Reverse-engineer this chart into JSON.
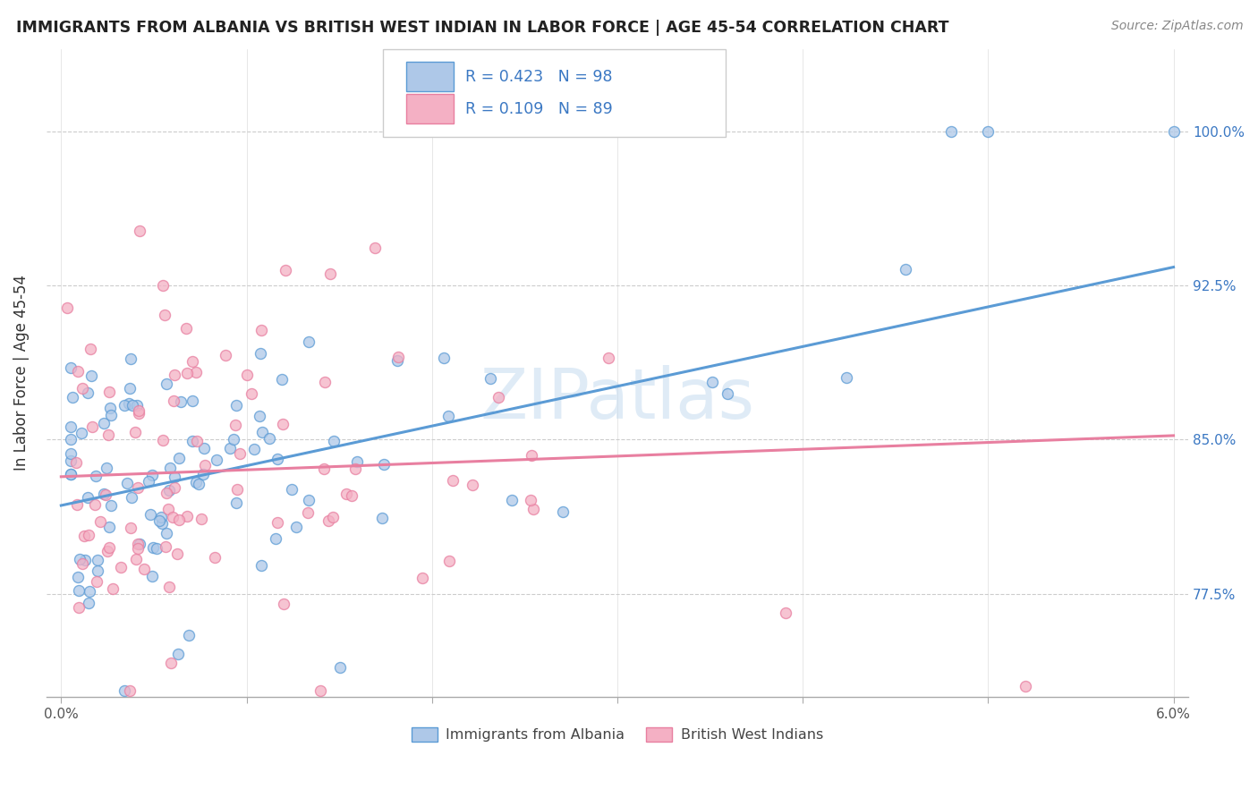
{
  "title": "IMMIGRANTS FROM ALBANIA VS BRITISH WEST INDIAN IN LABOR FORCE | AGE 45-54 CORRELATION CHART",
  "source": "Source: ZipAtlas.com",
  "ylabel": "In Labor Force | Age 45-54",
  "ytick_labels": [
    "77.5%",
    "85.0%",
    "92.5%",
    "100.0%"
  ],
  "ytick_values": [
    0.775,
    0.85,
    0.925,
    1.0
  ],
  "xlim": [
    0.0,
    0.06
  ],
  "ylim": [
    0.725,
    1.04
  ],
  "albania_fill": "#aec8e8",
  "albania_edge": "#5b9bd5",
  "bwi_fill": "#f4b0c4",
  "bwi_edge": "#e87fa0",
  "line_albania": "#5b9bd5",
  "line_bwi": "#e87fa0",
  "legend_text_color": "#3b78c3",
  "watermark": "ZIPatlas",
  "albania_R": 0.423,
  "albania_N": 98,
  "bwi_R": 0.109,
  "bwi_N": 89,
  "alb_line_x0": 0.0,
  "alb_line_y0": 0.818,
  "alb_line_x1": 0.06,
  "alb_line_y1": 0.934,
  "bwi_line_x0": 0.0,
  "bwi_line_y0": 0.832,
  "bwi_line_x1": 0.06,
  "bwi_line_y1": 0.852
}
